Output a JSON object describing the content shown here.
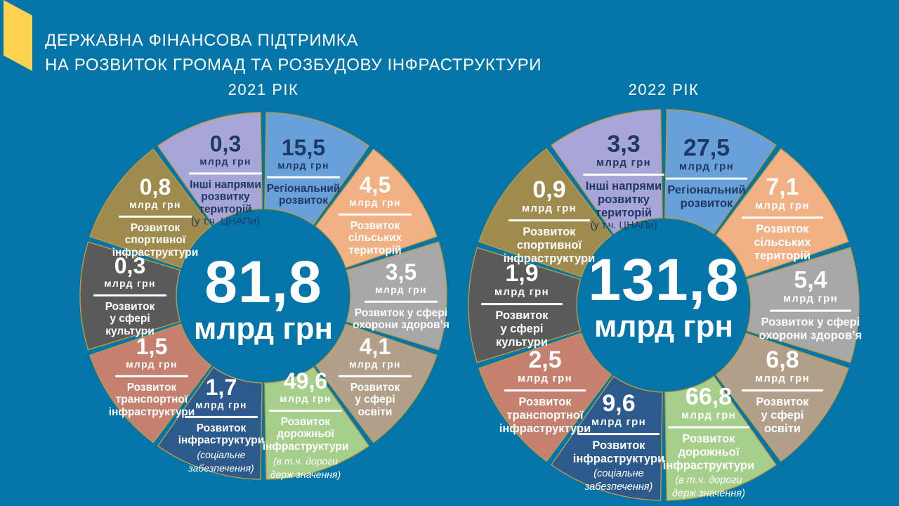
{
  "title": {
    "line1": "ДЕРЖАВНА ФІНАНСОВА ПІДТРИМКА",
    "line2": "НА РОЗВИТОК ГРОМАД ТА РОЗБУДОВУ ІНФРАСТРУКТУРИ"
  },
  "colors": {
    "background": "#0375A9",
    "accent_yellow": "#FFD24F",
    "segment_border": "#C09A3C",
    "text_light": "#FFFFFF",
    "text_dark_navy": "#1F3864"
  },
  "chart_data": [
    {
      "type": "pie",
      "variant": "donut",
      "title": "2021 РІК",
      "center_value": "81,8",
      "center_unit": "млрд грн",
      "total": 81.8,
      "units": "млрд грн",
      "legend_position": "inside-segments",
      "segments": [
        {
          "value": "15,5",
          "numeric": 15.5,
          "unit": "млрд грн",
          "label": [
            "Регіональний",
            "розвиток"
          ],
          "color": "#68A0DA",
          "text_color": "#1F3864"
        },
        {
          "value": "4,5",
          "numeric": 4.5,
          "unit": "млрд грн",
          "label": [
            "Розвиток",
            "сільських",
            "територій"
          ],
          "color": "#F2B185",
          "text_color": "#FFFFFF"
        },
        {
          "value": "3,5",
          "numeric": 3.5,
          "unit": "млрд грн",
          "label": [
            "Розвиток у сфері",
            "охорони здоров’я"
          ],
          "color": "#A8A8A8",
          "text_color": "#FFFFFF"
        },
        {
          "value": "4,1",
          "numeric": 4.1,
          "unit": "млрд грн",
          "label": [
            "Розвиток",
            "у сфері",
            "освіти"
          ],
          "color": "#B3A08B",
          "text_color": "#FFFFFF"
        },
        {
          "value": "49,6",
          "numeric": 49.6,
          "unit": "млрд грн",
          "label": [
            "Розвиток",
            "дорожньої",
            "інфраструктури"
          ],
          "note": [
            "(в т.ч. дороги",
            "держ значення)"
          ],
          "note_style": "italic",
          "color": "#A7CF8C",
          "text_color": "#FFFFFF"
        },
        {
          "value": "1,7",
          "numeric": 1.7,
          "unit": "млрд грн",
          "label": [
            "Розвиток",
            "інфраструктури"
          ],
          "note": [
            "(соціальне",
            "забезпечення)"
          ],
          "note_style": "italic",
          "color": "#2C5A8C",
          "text_color": "#FFFFFF"
        },
        {
          "value": "1,5",
          "numeric": 1.5,
          "unit": "млрд грн",
          "label": [
            "Розвиток",
            "транспортної",
            "інфраструктури"
          ],
          "color": "#C5806F",
          "text_color": "#FFFFFF"
        },
        {
          "value": "0,3",
          "numeric": 0.3,
          "unit": "млрд грн",
          "label": [
            "Розвиток",
            "у сфері",
            "культури"
          ],
          "color": "#5A5A5A",
          "text_color": "#FFFFFF"
        },
        {
          "value": "0,8",
          "numeric": 0.8,
          "unit": "млрд грн",
          "label": [
            "Розвиток",
            "спортивної",
            "інфраструктури"
          ],
          "color": "#9E8B4D",
          "text_color": "#FFFFFF"
        },
        {
          "value": "0,3",
          "numeric": 0.3,
          "unit": "млрд грн",
          "label": [
            "Інші напрями",
            "розвитку",
            "територій"
          ],
          "note": [
            "(у т.ч. ЦНАПи)"
          ],
          "note_style": "plain",
          "color": "#A8A6D9",
          "text_color": "#1F3864"
        }
      ]
    },
    {
      "type": "pie",
      "variant": "donut",
      "title": "2022 РІК",
      "center_value": "131,8",
      "center_unit": "млрд грн",
      "total": 131.8,
      "units": "млрд грн",
      "legend_position": "inside-segments",
      "segments": [
        {
          "value": "27,5",
          "numeric": 27.5,
          "unit": "млрд грн",
          "label": [
            "Регіональний",
            "розвиток"
          ],
          "color": "#68A0DA",
          "text_color": "#1F3864"
        },
        {
          "value": "7,1",
          "numeric": 7.1,
          "unit": "млрд грн",
          "label": [
            "Розвиток",
            "сільських",
            "територій"
          ],
          "color": "#F2B185",
          "text_color": "#FFFFFF"
        },
        {
          "value": "5,4",
          "numeric": 5.4,
          "unit": "млрд грн",
          "label": [
            "Розвиток у сфері",
            "охорони здоров’я"
          ],
          "color": "#A8A8A8",
          "text_color": "#FFFFFF"
        },
        {
          "value": "6,8",
          "numeric": 6.8,
          "unit": "млрд грн",
          "label": [
            "Розвиток",
            "у сфері",
            "освіти"
          ],
          "color": "#B3A08B",
          "text_color": "#FFFFFF"
        },
        {
          "value": "66,8",
          "numeric": 66.8,
          "unit": "млрд грн",
          "label": [
            "Розвиток",
            "дорожньої",
            "інфраструктури"
          ],
          "note": [
            "(в т.ч. дороги",
            "держ значення)"
          ],
          "note_style": "italic",
          "color": "#A7CF8C",
          "text_color": "#FFFFFF"
        },
        {
          "value": "9,6",
          "numeric": 9.6,
          "unit": "млрд грн",
          "label": [
            "Розвиток",
            "інфраструктури"
          ],
          "note": [
            "(соціальне",
            "забезпечення)"
          ],
          "note_style": "italic",
          "color": "#2C5A8C",
          "text_color": "#FFFFFF"
        },
        {
          "value": "2,5",
          "numeric": 2.5,
          "unit": "млрд грн",
          "label": [
            "Розвиток",
            "транспортної",
            "інфраструктури"
          ],
          "color": "#C5806F",
          "text_color": "#FFFFFF"
        },
        {
          "value": "1,9",
          "numeric": 1.9,
          "unit": "млрд грн",
          "label": [
            "Розвиток",
            "у сфері",
            "культури"
          ],
          "color": "#5A5A5A",
          "text_color": "#FFFFFF"
        },
        {
          "value": "0,9",
          "numeric": 0.9,
          "unit": "млрд грн",
          "label": [
            "Розвиток",
            "спортивної",
            "інфраструктури"
          ],
          "color": "#9E8B4D",
          "text_color": "#FFFFFF"
        },
        {
          "value": "3,3",
          "numeric": 3.3,
          "unit": "млрд грн",
          "label": [
            "Інші напрями",
            "розвитку",
            "територій"
          ],
          "note": [
            "(у т.ч. ЦНАПи)"
          ],
          "note_style": "plain",
          "color": "#A8A6D9",
          "text_color": "#1F3864"
        }
      ]
    }
  ]
}
